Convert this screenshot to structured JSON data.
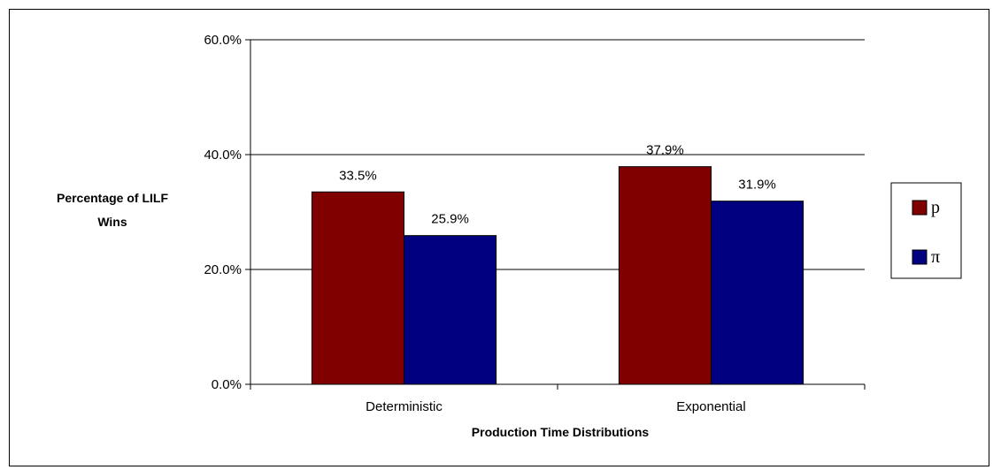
{
  "chart_data": {
    "type": "bar",
    "title": "",
    "xlabel": "Production Time Distributions",
    "ylabel": "Percentage of LILF Wins",
    "ylabel_lines": [
      "Percentage of LILF",
      "Wins"
    ],
    "categories": [
      "Deterministic",
      "Exponential"
    ],
    "series": [
      {
        "name": "p",
        "color": "#800000",
        "values": [
          33.5,
          37.9
        ],
        "labels": [
          "33.5%",
          "37.9%"
        ]
      },
      {
        "name": "π",
        "color": "#000080",
        "values": [
          25.9,
          31.9
        ],
        "labels": [
          "25.9%",
          "31.9%"
        ]
      }
    ],
    "ylim": [
      0,
      60
    ],
    "yticks": [
      0,
      20,
      40,
      60
    ],
    "ytick_labels": [
      "0.0%",
      "20.0%",
      "40.0%",
      "60.0%"
    ],
    "grid": true,
    "legend": "right"
  }
}
